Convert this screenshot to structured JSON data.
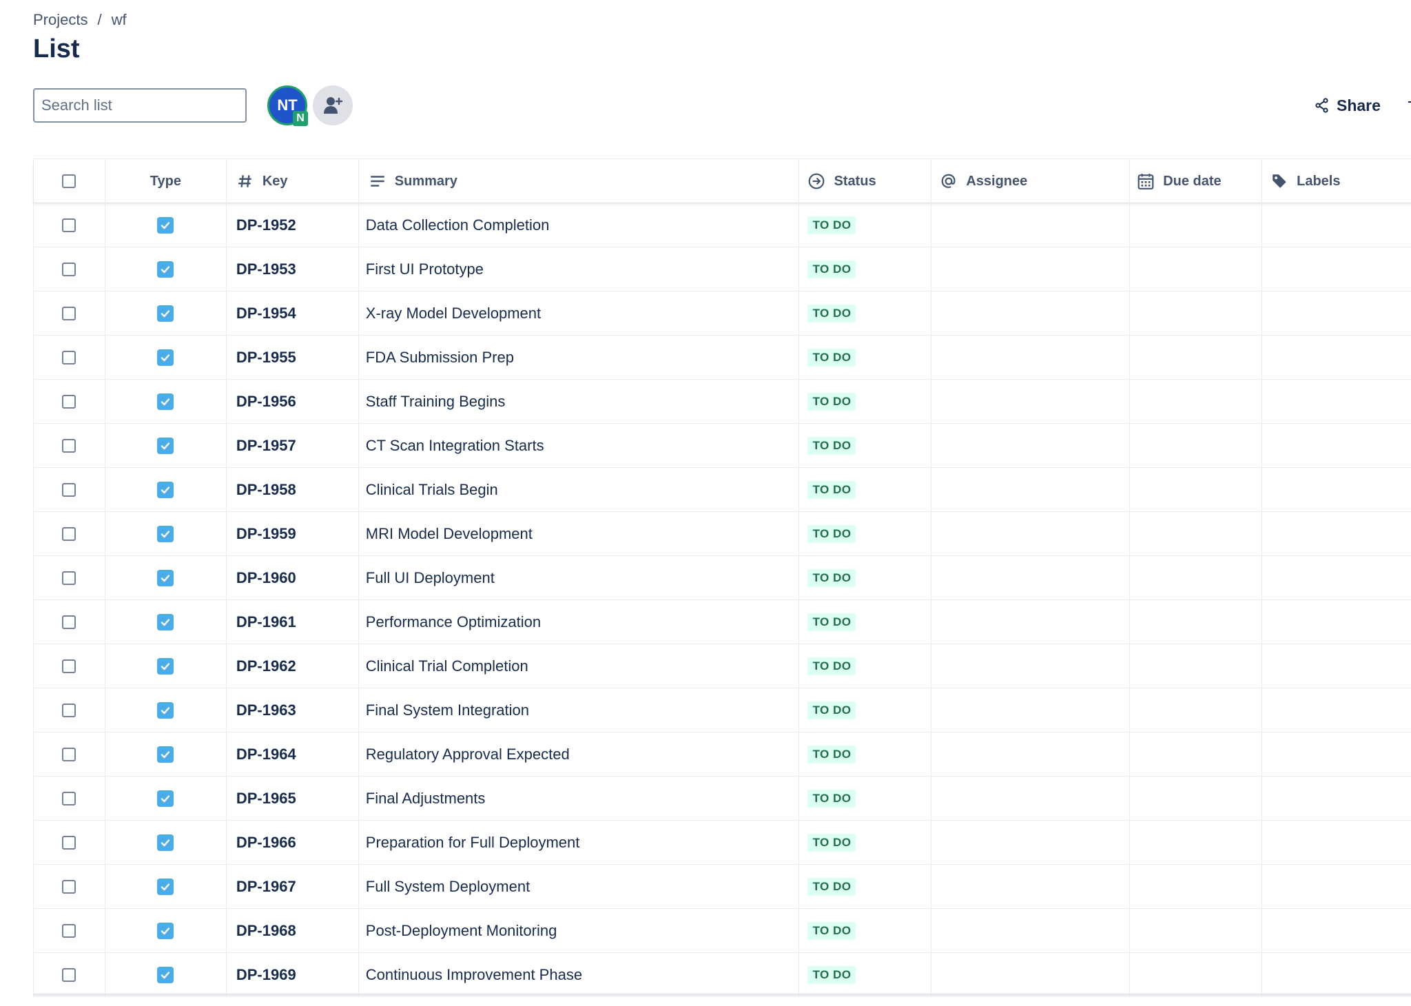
{
  "breadcrumb": {
    "items": [
      "Projects",
      "wf"
    ],
    "separator": "/"
  },
  "page": {
    "title": "List"
  },
  "search": {
    "placeholder": "Search list",
    "value": ""
  },
  "avatar": {
    "initials": "NT",
    "badge": "N"
  },
  "toolbar": {
    "share_label": "Share"
  },
  "table": {
    "columns": {
      "type": "Type",
      "key": "Key",
      "summary": "Summary",
      "status": "Status",
      "assignee": "Assignee",
      "due": "Due date",
      "labels": "Labels"
    },
    "rows": [
      {
        "key": "DP-1952",
        "summary": "Data Collection Completion",
        "status": "TO DO"
      },
      {
        "key": "DP-1953",
        "summary": "First UI Prototype",
        "status": "TO DO"
      },
      {
        "key": "DP-1954",
        "summary": "X-ray Model Development",
        "status": "TO DO"
      },
      {
        "key": "DP-1955",
        "summary": "FDA Submission Prep",
        "status": "TO DO"
      },
      {
        "key": "DP-1956",
        "summary": "Staff Training Begins",
        "status": "TO DO"
      },
      {
        "key": "DP-1957",
        "summary": "CT Scan Integration Starts",
        "status": "TO DO"
      },
      {
        "key": "DP-1958",
        "summary": "Clinical Trials Begin",
        "status": "TO DO"
      },
      {
        "key": "DP-1959",
        "summary": "MRI Model Development",
        "status": "TO DO"
      },
      {
        "key": "DP-1960",
        "summary": "Full UI Deployment",
        "status": "TO DO"
      },
      {
        "key": "DP-1961",
        "summary": "Performance Optimization",
        "status": "TO DO"
      },
      {
        "key": "DP-1962",
        "summary": "Clinical Trial Completion",
        "status": "TO DO"
      },
      {
        "key": "DP-1963",
        "summary": "Final System Integration",
        "status": "TO DO"
      },
      {
        "key": "DP-1964",
        "summary": "Regulatory Approval Expected",
        "status": "TO DO"
      },
      {
        "key": "DP-1965",
        "summary": "Final Adjustments",
        "status": "TO DO"
      },
      {
        "key": "DP-1966",
        "summary": "Preparation for Full Deployment",
        "status": "TO DO"
      },
      {
        "key": "DP-1967",
        "summary": "Full System Deployment",
        "status": "TO DO"
      },
      {
        "key": "DP-1968",
        "summary": "Post-Deployment Monitoring",
        "status": "TO DO"
      },
      {
        "key": "DP-1969",
        "summary": "Continuous Improvement Phase",
        "status": "TO DO"
      }
    ]
  },
  "colors": {
    "accent": "#1f55c9",
    "task_icon": "#4bade8",
    "status_bg": "#dcfff1",
    "status_text": "#216e4e"
  }
}
